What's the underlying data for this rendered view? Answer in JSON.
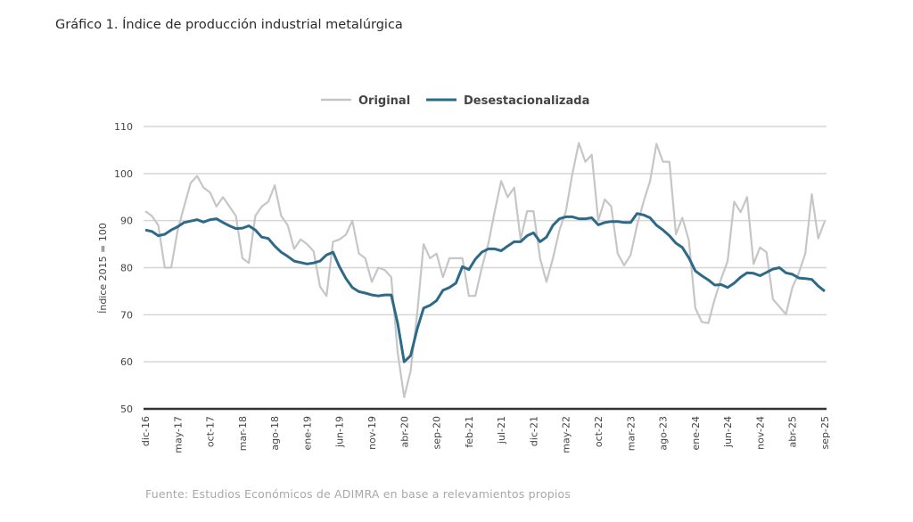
{
  "chart_data": {
    "type": "line",
    "title": "Gráfico 1. Índice de producción industrial metalúrgica",
    "source": "Fuente: Estudios Económicos de ADIMRA en base a relevamientos propios",
    "ylabel": "Índice 2015 = 100",
    "xlabel": "",
    "ylim": [
      50,
      110
    ],
    "yticks": [
      50,
      60,
      70,
      80,
      90,
      100,
      110
    ],
    "grid": true,
    "legend_placement": "top-center",
    "x_start": "dic-16",
    "x_end": "sep-25",
    "x_frequency": "monthly",
    "xtick_labels": [
      "dic-16",
      "may-17",
      "oct-17",
      "mar-18",
      "ago-18",
      "ene-19",
      "jun-19",
      "nov-19",
      "abr-20",
      "sep-20",
      "feb-21",
      "jul-21",
      "dic-21",
      "may-22",
      "oct-22",
      "mar-23",
      "ago-23",
      "ene-24",
      "jun-24",
      "nov-24",
      "abr-25",
      "sep-25"
    ],
    "series": [
      {
        "name": "Original",
        "color": "#c6c6c6",
        "values": [
          92,
          91,
          89,
          80,
          80,
          88,
          93,
          98,
          99.5,
          97,
          96,
          93,
          95,
          93,
          91,
          82,
          81,
          91,
          93,
          94,
          97.5,
          91,
          89,
          84,
          86,
          85,
          83.5,
          76,
          74,
          85.5,
          86,
          87,
          90,
          83,
          82,
          77,
          80,
          79.5,
          78,
          62,
          52.5,
          58,
          70,
          85,
          82,
          83,
          78,
          82,
          82,
          82,
          74,
          74,
          80,
          85,
          92,
          98.4,
          95,
          97,
          86,
          92,
          92,
          82,
          77,
          82,
          88,
          92,
          100,
          106.5,
          102.5,
          104,
          90,
          94.5,
          93,
          83,
          80.5,
          82.7,
          89,
          94,
          98.4,
          106.3,
          102.5,
          102.5,
          87.1,
          90.6,
          85.8,
          71.4,
          68.5,
          68.2,
          73.3,
          77.7,
          81.4,
          94,
          91.8,
          95,
          80.8,
          84.3,
          83.3,
          73.3,
          71.7,
          70.1,
          75.8,
          78.9,
          83,
          95.6,
          86.2,
          89.9
        ]
      },
      {
        "name": "Desestacionalizada",
        "color": "#2d6a88",
        "values": [
          88,
          87.7,
          86.8,
          87.1,
          88,
          88.7,
          89.6,
          89.9,
          90.2,
          89.7,
          90.2,
          90.4,
          89.6,
          88.9,
          88.3,
          88.4,
          88.9,
          88,
          86.5,
          86.2,
          84.6,
          83.3,
          82.4,
          81.4,
          81.1,
          80.8,
          81,
          81.4,
          82.7,
          83.3,
          80.2,
          77.7,
          75.8,
          74.9,
          74.6,
          74.2,
          74,
          74.2,
          74.2,
          68.2,
          60,
          61.3,
          66.9,
          71.4,
          72,
          73,
          75.2,
          75.8,
          76.7,
          80.2,
          79.6,
          81.8,
          83.3,
          84,
          84,
          83.6,
          84.6,
          85.5,
          85.5,
          86.8,
          87.4,
          85.5,
          86.5,
          89,
          90.4,
          90.8,
          90.8,
          90.4,
          90.4,
          90.6,
          89.1,
          89.6,
          89.8,
          89.8,
          89.6,
          89.6,
          91.5,
          91.2,
          90.6,
          89,
          88,
          86.8,
          85.2,
          84.3,
          82.1,
          79.3,
          78.3,
          77.4,
          76.3,
          76.4,
          75.8,
          76.7,
          78,
          78.9,
          78.8,
          78.3,
          79,
          79.7,
          80,
          78.9,
          78.6,
          77.8,
          77.7,
          77.5,
          76.1,
          75
        ]
      }
    ]
  }
}
